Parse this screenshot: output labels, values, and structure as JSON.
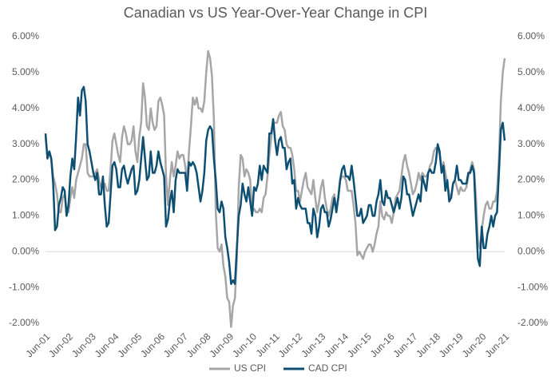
{
  "chart_data": {
    "type": "line",
    "title": "Canadian vs US Year-Over-Year Change in CPI",
    "categories": [
      "Jun-01",
      null,
      null,
      null,
      null,
      null,
      null,
      null,
      null,
      null,
      null,
      null,
      "Jun-02",
      null,
      null,
      null,
      null,
      null,
      null,
      null,
      null,
      null,
      null,
      null,
      "Jun-03",
      null,
      null,
      null,
      null,
      null,
      null,
      null,
      null,
      null,
      null,
      null,
      "Jun-04",
      null,
      null,
      null,
      null,
      null,
      null,
      null,
      null,
      null,
      null,
      null,
      "Jun-05",
      null,
      null,
      null,
      null,
      null,
      null,
      null,
      null,
      null,
      null,
      null,
      "Jun-06",
      null,
      null,
      null,
      null,
      null,
      null,
      null,
      null,
      null,
      null,
      null,
      "Jun-07",
      null,
      null,
      null,
      null,
      null,
      null,
      null,
      null,
      null,
      null,
      null,
      "Jun-08",
      null,
      null,
      null,
      null,
      null,
      null,
      null,
      null,
      null,
      null,
      null,
      "Jun-09",
      null,
      null,
      null,
      null,
      null,
      null,
      null,
      null,
      null,
      null,
      null,
      "Jun-10",
      null,
      null,
      null,
      null,
      null,
      null,
      null,
      null,
      null,
      null,
      null,
      "Jun-11",
      null,
      null,
      null,
      null,
      null,
      null,
      null,
      null,
      null,
      null,
      null,
      "Jun-12",
      null,
      null,
      null,
      null,
      null,
      null,
      null,
      null,
      null,
      null,
      null,
      "Jun-13",
      null,
      null,
      null,
      null,
      null,
      null,
      null,
      null,
      null,
      null,
      null,
      "Jun-14",
      null,
      null,
      null,
      null,
      null,
      null,
      null,
      null,
      null,
      null,
      null,
      "Jun-15",
      null,
      null,
      null,
      null,
      null,
      null,
      null,
      null,
      null,
      null,
      null,
      "Jun-16",
      null,
      null,
      null,
      null,
      null,
      null,
      null,
      null,
      null,
      null,
      null,
      "Jun-17",
      null,
      null,
      null,
      null,
      null,
      null,
      null,
      null,
      null,
      null,
      null,
      "Jun-18",
      null,
      null,
      null,
      null,
      null,
      null,
      null,
      null,
      null,
      null,
      null,
      "Jun-19",
      null,
      null,
      null,
      null,
      null,
      null,
      null,
      null,
      null,
      null,
      null,
      "Jun-20",
      null,
      null,
      null,
      null,
      null,
      null,
      null,
      null,
      null,
      null,
      null,
      "Jun-21"
    ],
    "series": [
      {
        "name": "US CPI",
        "color": "#a6a6a6",
        "values": [
          3.2,
          2.7,
          2.7,
          2.6,
          2.1,
          1.9,
          1.6,
          1.1,
          1.1,
          1.5,
          1.6,
          1.2,
          1.1,
          1.5,
          1.8,
          1.5,
          2.0,
          2.2,
          2.4,
          2.6,
          3.0,
          3.0,
          2.2,
          2.1,
          2.1,
          2.1,
          2.2,
          2.3,
          2.0,
          1.8,
          1.9,
          1.9,
          1.7,
          1.7,
          2.3,
          3.1,
          3.3,
          3.0,
          2.7,
          2.5,
          3.2,
          3.5,
          3.3,
          3.0,
          3.0,
          3.1,
          3.5,
          2.8,
          2.5,
          3.2,
          3.6,
          4.7,
          4.3,
          3.5,
          3.4,
          4.0,
          3.6,
          3.4,
          3.5,
          4.2,
          4.3,
          4.1,
          3.8,
          2.1,
          1.3,
          2.0,
          2.5,
          2.1,
          2.4,
          2.8,
          2.6,
          2.7,
          2.7,
          2.4,
          2.0,
          2.8,
          3.5,
          4.3,
          4.1,
          4.3,
          4.0,
          4.0,
          3.9,
          4.2,
          5.0,
          5.6,
          5.4,
          4.9,
          3.7,
          1.1,
          0.1,
          0.0,
          0.2,
          -0.4,
          -0.7,
          -1.3,
          -1.4,
          -2.1,
          -1.5,
          -1.3,
          -0.2,
          1.8,
          2.7,
          2.6,
          2.1,
          2.3,
          2.2,
          2.0,
          1.1,
          1.2,
          1.1,
          1.1,
          1.2,
          1.1,
          1.5,
          1.6,
          2.1,
          2.7,
          3.2,
          3.6,
          3.6,
          3.6,
          3.8,
          3.9,
          3.5,
          3.4,
          3.0,
          2.9,
          2.9,
          2.7,
          2.3,
          1.7,
          1.7,
          1.4,
          1.7,
          2.0,
          2.2,
          1.8,
          1.7,
          1.6,
          2.0,
          1.5,
          1.1,
          1.4,
          1.8,
          2.0,
          1.5,
          1.2,
          1.0,
          1.2,
          1.5,
          1.6,
          1.1,
          1.5,
          2.0,
          2.1,
          2.1,
          2.0,
          1.7,
          1.7,
          1.7,
          1.3,
          0.8,
          -0.1,
          0.0,
          -0.1,
          -0.2,
          0.0,
          0.1,
          0.2,
          0.2,
          0.0,
          0.2,
          0.5,
          0.7,
          1.4,
          1.0,
          0.9,
          1.1,
          1.0,
          1.0,
          0.8,
          1.1,
          1.5,
          1.6,
          1.7,
          2.1,
          2.5,
          2.7,
          2.4,
          2.2,
          1.9,
          1.6,
          1.7,
          1.9,
          2.2,
          2.0,
          2.2,
          2.1,
          2.1,
          2.2,
          2.4,
          2.5,
          2.8,
          2.9,
          2.9,
          2.7,
          2.3,
          2.5,
          2.2,
          1.9,
          1.6,
          1.5,
          1.9,
          2.0,
          1.8,
          1.6,
          1.8,
          1.7,
          1.7,
          1.8,
          2.1,
          2.3,
          2.5,
          2.3,
          1.5,
          0.3,
          0.1,
          0.6,
          1.0,
          1.3,
          1.4,
          1.2,
          1.2,
          1.4,
          1.4,
          1.7,
          2.6,
          4.2,
          5.0,
          5.4
        ]
      },
      {
        "name": "CAD CPI",
        "color": "#0d4f73",
        "values": [
          3.3,
          2.6,
          2.8,
          2.6,
          1.9,
          0.6,
          0.7,
          1.3,
          1.5,
          1.8,
          1.7,
          1.0,
          1.3,
          2.1,
          2.6,
          2.3,
          3.2,
          4.3,
          3.8,
          4.5,
          4.6,
          4.2,
          3.0,
          2.8,
          2.5,
          2.2,
          2.0,
          2.2,
          1.6,
          1.6,
          2.1,
          1.3,
          0.7,
          0.8,
          1.6,
          2.4,
          2.5,
          2.3,
          1.8,
          1.8,
          2.3,
          2.4,
          2.1,
          1.9,
          2.1,
          2.3,
          2.4,
          1.6,
          1.7,
          2.0,
          2.6,
          3.2,
          2.6,
          2.0,
          2.1,
          2.8,
          2.2,
          2.2,
          2.4,
          2.8,
          2.5,
          2.3,
          2.1,
          0.7,
          0.9,
          1.4,
          1.7,
          1.1,
          2.0,
          2.3,
          2.2,
          2.2,
          2.2,
          2.2,
          1.7,
          2.5,
          2.4,
          2.5,
          2.4,
          2.2,
          1.8,
          1.4,
          1.7,
          2.2,
          3.1,
          3.4,
          3.5,
          3.4,
          2.6,
          2.0,
          1.2,
          1.1,
          1.4,
          1.2,
          0.4,
          0.1,
          -0.3,
          -0.9,
          -0.8,
          -0.9,
          0.1,
          1.0,
          1.3,
          1.9,
          1.6,
          1.4,
          1.8,
          1.4,
          1.0,
          1.8,
          1.7,
          1.9,
          2.4,
          2.0,
          2.4,
          2.3,
          2.2,
          3.3,
          3.3,
          3.7,
          3.1,
          2.7,
          3.1,
          3.2,
          2.9,
          2.9,
          2.3,
          2.5,
          2.6,
          1.9,
          2.0,
          1.2,
          1.5,
          1.3,
          1.2,
          1.2,
          1.2,
          0.8,
          0.8,
          0.5,
          1.2,
          1.0,
          0.4,
          0.7,
          1.2,
          1.3,
          1.1,
          1.1,
          0.7,
          0.9,
          1.2,
          1.5,
          1.1,
          1.5,
          2.0,
          2.3,
          2.4,
          2.1,
          2.1,
          2.0,
          2.4,
          2.0,
          1.5,
          1.0,
          1.0,
          1.2,
          0.8,
          0.9,
          1.0,
          1.3,
          1.3,
          1.0,
          1.0,
          1.4,
          1.6,
          2.0,
          1.4,
          1.3,
          1.7,
          1.5,
          1.5,
          1.3,
          1.1,
          1.3,
          1.5,
          1.2,
          1.5,
          2.1,
          2.0,
          1.6,
          1.6,
          1.3,
          1.0,
          1.2,
          1.4,
          1.6,
          1.4,
          2.1,
          1.9,
          1.7,
          2.2,
          2.3,
          2.2,
          2.2,
          2.5,
          3.0,
          2.8,
          2.2,
          2.4,
          1.7,
          2.0,
          1.4,
          1.5,
          1.9,
          2.0,
          2.4,
          2.0,
          2.0,
          1.9,
          1.9,
          1.9,
          2.2,
          2.2,
          2.4,
          2.2,
          0.9,
          -0.2,
          -0.4,
          0.7,
          0.1,
          0.1,
          0.5,
          0.7,
          1.0,
          0.7,
          1.0,
          1.1,
          2.2,
          3.4,
          3.6,
          3.1
        ]
      }
    ],
    "ylim": [
      -2,
      6
    ],
    "yticks": [
      {
        "value": -2,
        "label": "-2.00%"
      },
      {
        "value": -1,
        "label": "-1.00%"
      },
      {
        "value": 0,
        "label": "0.00%"
      },
      {
        "value": 1,
        "label": "1.00%"
      },
      {
        "value": 2,
        "label": "2.00%"
      },
      {
        "value": 3,
        "label": "3.00%"
      },
      {
        "value": 4,
        "label": "4.00%"
      },
      {
        "value": 5,
        "label": "5.00%"
      },
      {
        "value": 6,
        "label": "6.00%"
      }
    ],
    "y2lim": [
      -2,
      6
    ],
    "y2ticks": [
      {
        "value": -2,
        "label": "-2.00%"
      },
      {
        "value": -1,
        "label": "-1.00%"
      },
      {
        "value": 0,
        "label": "0.00%"
      },
      {
        "value": 1,
        "label": "1.00%"
      },
      {
        "value": 2,
        "label": "2.00%"
      },
      {
        "value": 3,
        "label": "3.00%"
      },
      {
        "value": 4,
        "label": "4.00%"
      },
      {
        "value": 5,
        "label": "5.00%"
      },
      {
        "value": 6,
        "label": "6.00%"
      }
    ],
    "legend": "bottom"
  }
}
